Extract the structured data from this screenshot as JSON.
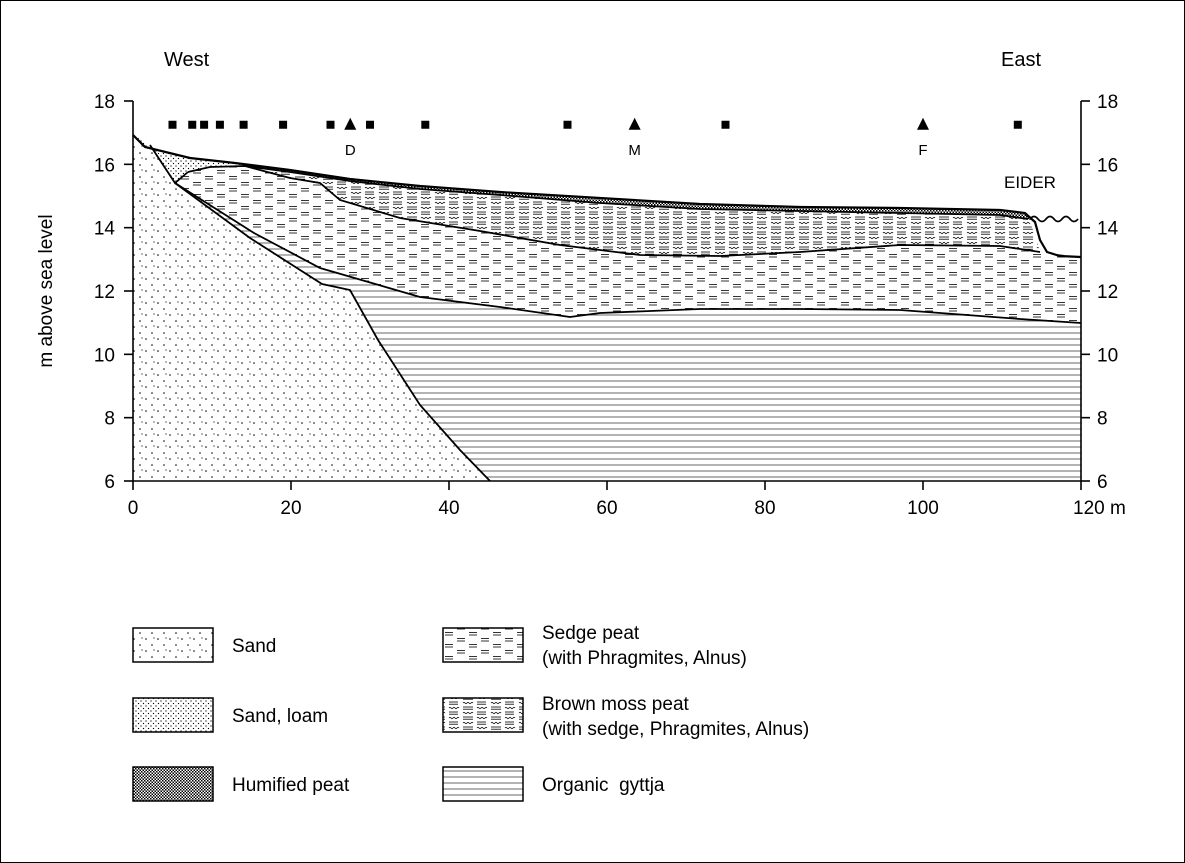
{
  "header": {
    "west": "West",
    "east": "East"
  },
  "axes": {
    "ylabel": "m above sea level",
    "x_ticks": [
      {
        "value": 0,
        "label": "0"
      },
      {
        "value": 20,
        "label": "20"
      },
      {
        "value": 40,
        "label": "40"
      },
      {
        "value": 60,
        "label": "60"
      },
      {
        "value": 80,
        "label": "80"
      },
      {
        "value": 100,
        "label": "100"
      },
      {
        "value": 120,
        "label": "120 m"
      }
    ],
    "y_ticks": [
      {
        "value": 6,
        "label": "6"
      },
      {
        "value": 8,
        "label": "8"
      },
      {
        "value": 10,
        "label": "10"
      },
      {
        "value": 12,
        "label": "12"
      },
      {
        "value": 14,
        "label": "14"
      },
      {
        "value": 16,
        "label": "16"
      },
      {
        "value": 18,
        "label": "18"
      }
    ],
    "x_range": [
      0,
      120
    ],
    "y_range": [
      6,
      18
    ]
  },
  "river_label": "EIDER",
  "boreholes": {
    "squares": [
      5,
      7.5,
      9,
      11,
      14,
      19,
      25,
      30,
      37,
      55,
      75,
      112
    ],
    "triangles": [
      {
        "x": 27.5,
        "label": "D"
      },
      {
        "x": 63.5,
        "label": "M"
      },
      {
        "x": 100,
        "label": "F"
      }
    ],
    "level": 17.25
  },
  "legend": {
    "sand": "Sand",
    "sand_loam": "Sand, loam",
    "humified_peat": "Humified peat",
    "sedge_peat_1": "Sedge peat",
    "sedge_peat_2": "(with Phragmites, Alnus)",
    "brown_moss_1": "Brown moss peat",
    "brown_moss_2": "(with sedge, Phragmites, Alnus)",
    "gyttja": "Organic  gyttja"
  }
}
